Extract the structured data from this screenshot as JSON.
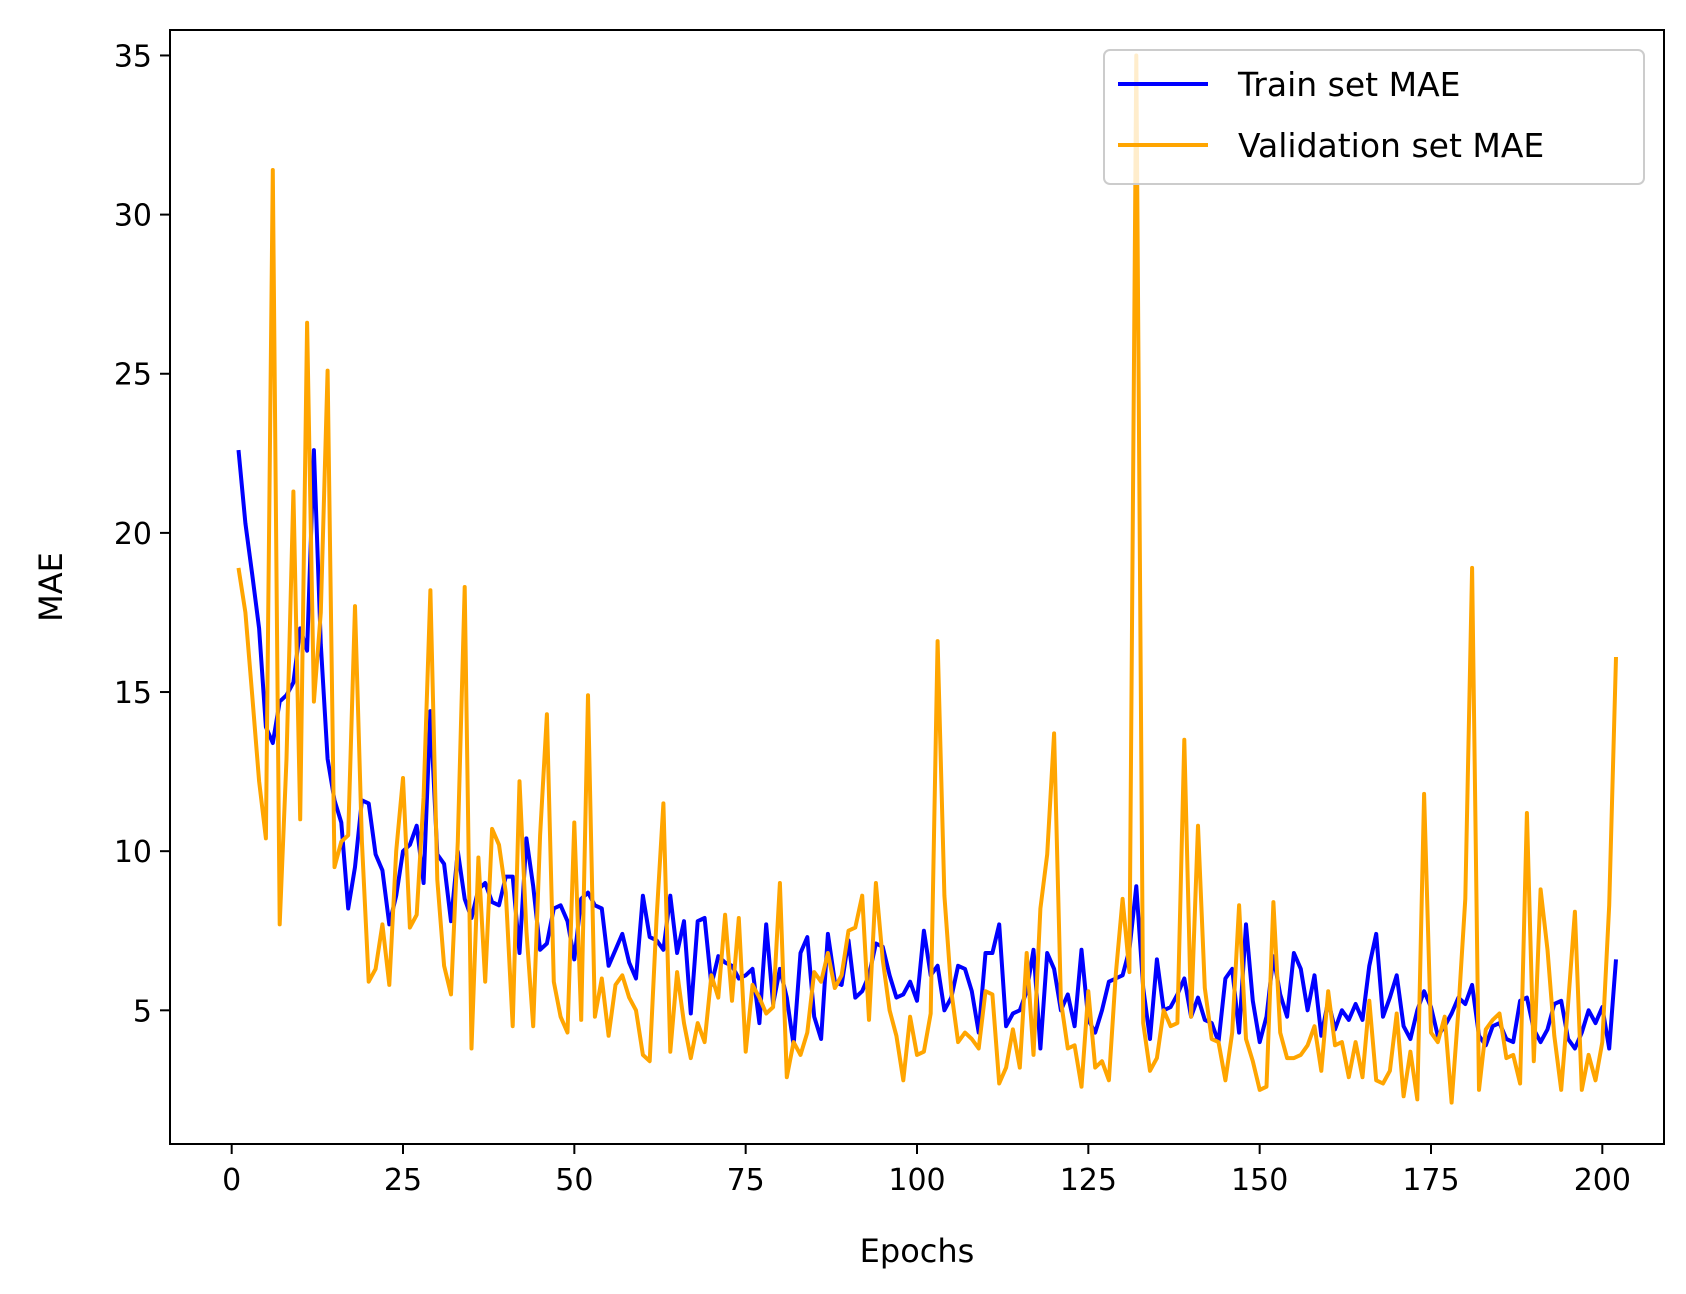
{
  "chart_data": {
    "type": "line",
    "xlabel": "Epochs",
    "ylabel": "MAE",
    "xlim": [
      -9,
      209
    ],
    "ylim": [
      0.8,
      35.8
    ],
    "xticks": [
      0,
      25,
      50,
      75,
      100,
      125,
      150,
      175,
      200
    ],
    "yticks": [
      5,
      10,
      15,
      20,
      25,
      30,
      35
    ],
    "grid": false,
    "legend_position": "top-right",
    "x_start": 1,
    "series": [
      {
        "name": "Train set MAE",
        "color": "#0000ff",
        "values": [
          22.6,
          20.3,
          18.7,
          17.0,
          13.9,
          13.4,
          14.7,
          14.9,
          15.3,
          17.0,
          16.3,
          22.6,
          16.5,
          12.9,
          11.6,
          10.9,
          8.2,
          9.5,
          11.6,
          11.5,
          9.9,
          9.4,
          7.7,
          8.6,
          10.0,
          10.2,
          10.8,
          9.0,
          14.4,
          9.9,
          9.6,
          7.8,
          10.0,
          8.5,
          7.9,
          8.8,
          9.0,
          8.4,
          8.3,
          9.2,
          9.2,
          6.8,
          10.4,
          8.9,
          6.9,
          7.1,
          8.2,
          8.3,
          7.8,
          6.6,
          8.5,
          8.7,
          8.3,
          8.2,
          6.4,
          6.9,
          7.4,
          6.5,
          6.0,
          8.6,
          7.3,
          7.2,
          6.9,
          8.6,
          6.8,
          7.8,
          4.9,
          7.8,
          7.9,
          5.8,
          6.7,
          6.5,
          6.4,
          6.0,
          6.1,
          6.3,
          4.6,
          7.7,
          5.2,
          6.3,
          5.4,
          3.9,
          6.8,
          7.3,
          4.8,
          4.1,
          7.4,
          5.9,
          5.8,
          7.2,
          5.4,
          5.6,
          6.1,
          7.1,
          7.0,
          6.1,
          5.4,
          5.5,
          5.9,
          5.3,
          7.5,
          6.1,
          6.4,
          5.0,
          5.4,
          6.4,
          6.3,
          5.6,
          4.3,
          6.8,
          6.8,
          7.7,
          4.5,
          4.9,
          5.0,
          5.6,
          6.9,
          3.8,
          6.8,
          6.3,
          5.0,
          5.5,
          4.5,
          6.9,
          4.7,
          4.3,
          5.0,
          5.9,
          6.0,
          6.1,
          6.9,
          8.9,
          5.7,
          4.1,
          6.6,
          5.0,
          5.1,
          5.5,
          6.0,
          4.8,
          5.4,
          4.7,
          4.6,
          4.0,
          6.0,
          6.3,
          4.3,
          7.7,
          5.3,
          4.0,
          4.8,
          6.7,
          5.5,
          4.8,
          6.8,
          6.3,
          5.0,
          6.1,
          4.2,
          5.3,
          4.4,
          5.0,
          4.7,
          5.2,
          4.7,
          6.4,
          7.4,
          4.8,
          5.4,
          6.1,
          4.5,
          4.1,
          5.0,
          5.6,
          5.1,
          4.2,
          4.5,
          4.9,
          5.4,
          5.2,
          5.8,
          4.2,
          3.9,
          4.5,
          4.6,
          4.1,
          4.0,
          5.3,
          5.4,
          4.4,
          4.0,
          4.4,
          5.2,
          5.3,
          4.1,
          3.8,
          4.3,
          5.0,
          4.6,
          5.1,
          3.8,
          6.6
        ]
      },
      {
        "name": "Validation set MAE",
        "color": "#ffa500",
        "values": [
          18.9,
          17.5,
          14.9,
          12.2,
          10.4,
          31.4,
          7.7,
          12.9,
          21.3,
          11.0,
          26.6,
          14.7,
          17.5,
          25.1,
          9.5,
          10.3,
          10.5,
          17.7,
          10.3,
          5.9,
          6.3,
          7.7,
          5.8,
          10.0,
          12.3,
          7.6,
          8.0,
          11.7,
          18.2,
          9.1,
          6.4,
          5.5,
          10.3,
          18.3,
          3.8,
          9.8,
          5.9,
          10.7,
          10.2,
          8.7,
          4.5,
          12.2,
          7.5,
          4.5,
          10.5,
          14.3,
          5.9,
          4.8,
          4.3,
          10.9,
          4.7,
          14.9,
          4.8,
          6.0,
          4.2,
          5.8,
          6.1,
          5.4,
          5.0,
          3.6,
          3.4,
          7.9,
          11.5,
          3.7,
          6.2,
          4.6,
          3.5,
          4.6,
          4.0,
          6.1,
          5.4,
          8.0,
          5.3,
          7.9,
          3.7,
          5.8,
          5.4,
          4.9,
          5.1,
          9.0,
          2.9,
          4.0,
          3.6,
          4.3,
          6.2,
          5.9,
          6.8,
          5.7,
          6.1,
          7.5,
          7.6,
          8.6,
          4.7,
          9.0,
          6.6,
          5.0,
          4.2,
          2.8,
          4.8,
          3.6,
          3.7,
          4.9,
          16.6,
          8.6,
          5.6,
          4.0,
          4.3,
          4.1,
          3.8,
          5.6,
          5.5,
          2.7,
          3.2,
          4.4,
          3.2,
          6.8,
          3.6,
          8.2,
          9.9,
          13.7,
          5.3,
          3.8,
          3.9,
          2.6,
          5.6,
          3.2,
          3.4,
          2.8,
          6.1,
          8.5,
          6.2,
          35.0,
          4.6,
          3.1,
          3.5,
          5.0,
          4.5,
          4.6,
          13.5,
          4.8,
          10.8,
          5.7,
          4.1,
          4.0,
          2.8,
          4.3,
          8.3,
          4.1,
          3.4,
          2.5,
          2.6,
          8.4,
          4.3,
          3.5,
          3.5,
          3.6,
          3.9,
          4.5,
          3.1,
          5.6,
          3.9,
          4.0,
          2.9,
          4.0,
          2.9,
          5.3,
          2.8,
          2.7,
          3.1,
          4.9,
          2.3,
          3.7,
          2.2,
          11.8,
          4.3,
          4.0,
          4.8,
          2.1,
          5.0,
          8.5,
          18.9,
          2.5,
          4.4,
          4.7,
          4.9,
          3.5,
          3.6,
          2.7,
          11.2,
          3.4,
          8.8,
          6.9,
          4.2,
          2.5,
          5.2,
          8.1,
          2.5,
          3.6,
          2.8,
          4.0,
          8.3,
          16.1
        ]
      }
    ]
  }
}
